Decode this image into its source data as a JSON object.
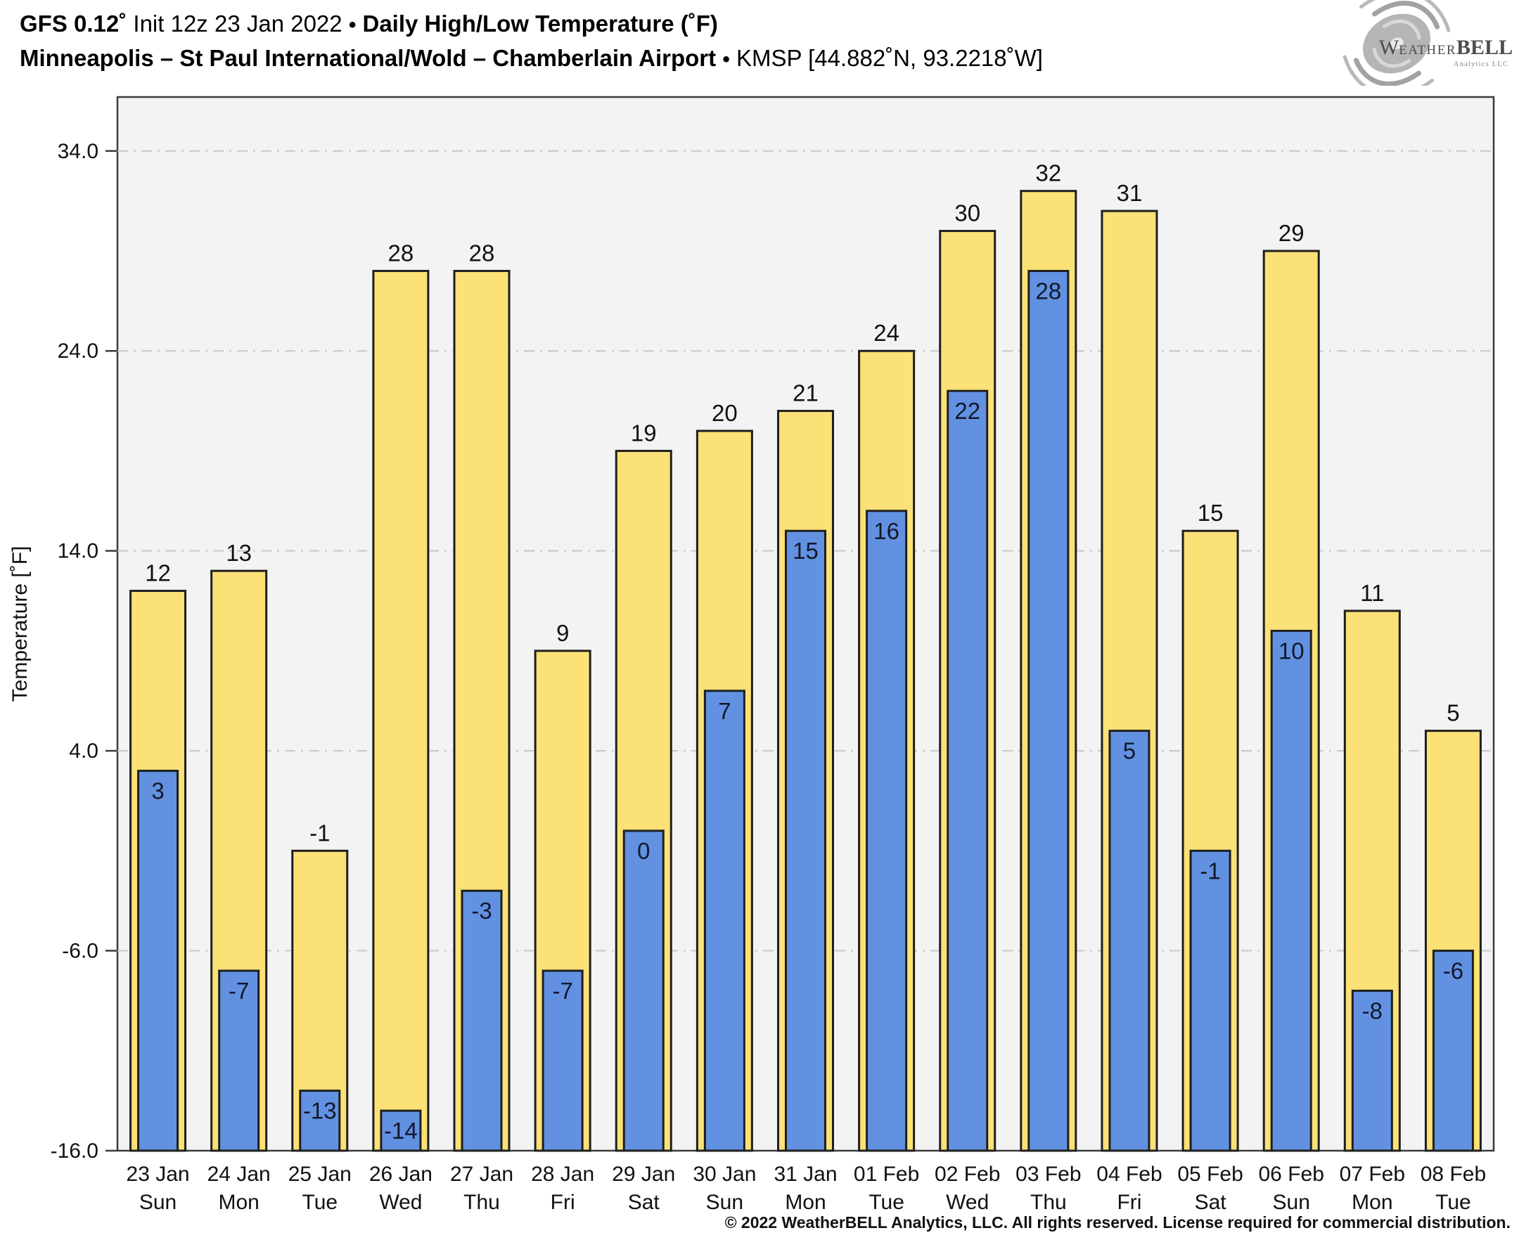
{
  "header": {
    "line1": {
      "model": "GFS 0.12˚",
      "init": "Init 12z 23 Jan 2022",
      "separator": "•",
      "product": "Daily High/Low Temperature (˚F)"
    },
    "line2": {
      "station_name": "Minneapolis – St Paul International/Wold – Chamberlain Airport",
      "separator": "•",
      "station_id": "KMSP [44.882˚N, 93.2218˚W]"
    }
  },
  "logo": {
    "word_w": "W",
    "word_eather": "EATHER",
    "word_bell": "BELL",
    "subtitle": "Analytics LLC"
  },
  "chart_data": {
    "type": "bar",
    "title": "Daily High/Low Temperature (˚F)",
    "ylabel": "Temperature [˚F]",
    "ylim": [
      -16,
      36.7
    ],
    "yticks": [
      34,
      24,
      14,
      4,
      -6,
      -16
    ],
    "ytick_labels": [
      "34.0",
      "24.0",
      "14.0",
      "4.0",
      "-6.0",
      "-16.0"
    ],
    "grid": "horizontal dashed at yticks above baseline",
    "legend_position": "none",
    "categories": [
      "23 Jan",
      "24 Jan",
      "25 Jan",
      "26 Jan",
      "27 Jan",
      "28 Jan",
      "29 Jan",
      "30 Jan",
      "31 Jan",
      "01 Feb",
      "02 Feb",
      "03 Feb",
      "04 Feb",
      "05 Feb",
      "06 Feb",
      "07 Feb",
      "08 Feb"
    ],
    "weekdays": [
      "Sun",
      "Mon",
      "Tue",
      "Wed",
      "Thu",
      "Fri",
      "Sat",
      "Sun",
      "Mon",
      "Tue",
      "Wed",
      "Thu",
      "Fri",
      "Sat",
      "Sun",
      "Mon",
      "Tue"
    ],
    "series": [
      {
        "name": "High",
        "color": "#FBE176",
        "values": [
          12,
          13,
          -1,
          28,
          28,
          9,
          19,
          20,
          21,
          24,
          30,
          32,
          31,
          15,
          29,
          11,
          5
        ]
      },
      {
        "name": "Low",
        "color": "#6291E2",
        "values": [
          3,
          -7,
          -13,
          -14,
          -3,
          -7,
          0,
          7,
          15,
          16,
          22,
          28,
          5,
          -1,
          10,
          -8,
          -6
        ]
      }
    ],
    "colors": {
      "plot_bg": "#f3f3f3",
      "grid": "#c7c7c7",
      "axis": "#3c3c3c",
      "bar_border": "#1f1f1f",
      "label_text": "#111111"
    }
  },
  "footer": {
    "copyright": "© 2022 WeatherBELL Analytics, LLC. All rights reserved. License required for commercial distribution."
  }
}
